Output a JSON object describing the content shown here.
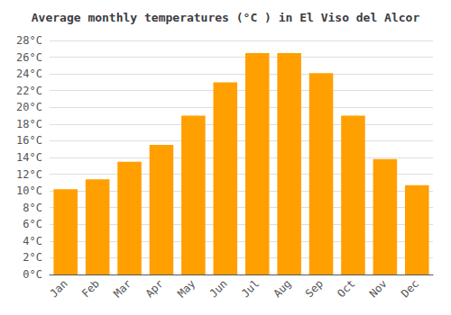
{
  "chart_data": {
    "type": "bar",
    "title": "Average monthly temperatures (°C ) in El Viso del Alcor",
    "categories": [
      "Jan",
      "Feb",
      "Mar",
      "Apr",
      "May",
      "Jun",
      "Jul",
      "Aug",
      "Sep",
      "Oct",
      "Nov",
      "Dec"
    ],
    "values": [
      10.2,
      11.4,
      13.5,
      15.5,
      19.0,
      23.0,
      26.5,
      26.5,
      24.1,
      19.0,
      13.8,
      10.7
    ],
    "color": "#FFA000",
    "ylim": [
      0,
      28
    ],
    "yticks": [
      {
        "value": 0,
        "label": "0°C"
      },
      {
        "value": 2,
        "label": "2°C"
      },
      {
        "value": 4,
        "label": "4°C"
      },
      {
        "value": 6,
        "label": "6°C"
      },
      {
        "value": 8,
        "label": "8°C"
      },
      {
        "value": 10,
        "label": "10°C"
      },
      {
        "value": 12,
        "label": "12°C"
      },
      {
        "value": 14,
        "label": "14°C"
      },
      {
        "value": 16,
        "label": "16°C"
      },
      {
        "value": 18,
        "label": "18°C"
      },
      {
        "value": 20,
        "label": "20°C"
      },
      {
        "value": 22,
        "label": "22°C"
      },
      {
        "value": 24,
        "label": "24°C"
      },
      {
        "value": 26,
        "label": "26°C"
      },
      {
        "value": 28,
        "label": "28°C"
      }
    ],
    "grid": true
  }
}
